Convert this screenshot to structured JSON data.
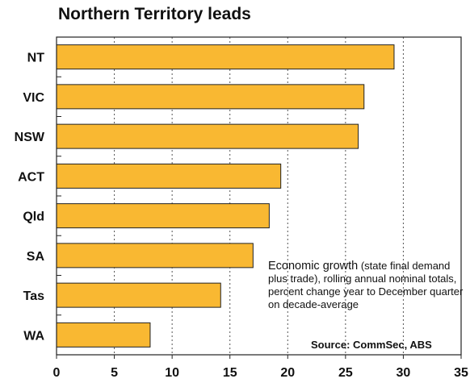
{
  "chart_data": {
    "type": "bar",
    "orientation": "horizontal",
    "title": "Northern Territory leads",
    "categories": [
      "NT",
      "VIC",
      "NSW",
      "ACT",
      "Qld",
      "SA",
      "Tas",
      "WA"
    ],
    "values": [
      29.2,
      26.6,
      26.1,
      19.4,
      18.4,
      17.0,
      14.2,
      8.1
    ],
    "xlim": [
      0,
      35
    ],
    "xticks": [
      "0",
      "5",
      "10",
      "15",
      "20",
      "25",
      "30",
      "35"
    ],
    "grid": "vertical dotted",
    "bar_color": "#F9B832",
    "bar_edge_color": "#222222",
    "annotation_lead": "Economic growth",
    "annotation_rest": " (state final demand plus trade), rolling annual nominal totals, percent change year to December quarter on decade-average",
    "source": "Source: CommSec, ABS"
  }
}
